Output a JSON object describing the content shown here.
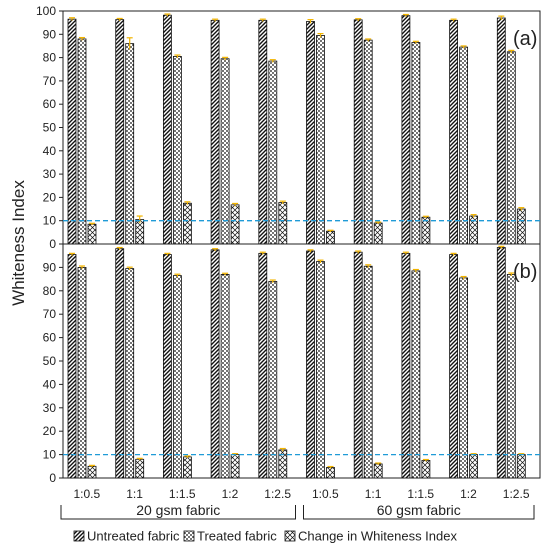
{
  "chart_data": {
    "type": "bar",
    "ylabel": "Whiteness Index",
    "ylim": [
      0,
      100
    ],
    "yticks": [
      0,
      10,
      20,
      30,
      40,
      50,
      60,
      70,
      80,
      90,
      100
    ],
    "categories": [
      "1:0.5",
      "1:1",
      "1:1.5",
      "1:2",
      "1:2.5",
      "1:0.5",
      "1:1",
      "1:1.5",
      "1:2",
      "1:2.5"
    ],
    "groups": [
      {
        "label": "20 gsm fabric",
        "from": 0,
        "to": 4
      },
      {
        "label": "60 gsm fabric",
        "from": 5,
        "to": 9
      }
    ],
    "reference_line": {
      "y": 10,
      "color": "#1f9bd7",
      "style": "dashed"
    },
    "legend": [
      "Untreated fabric",
      "Treated fabric",
      "Change in Whiteness Index"
    ],
    "legend_placement": "bottom",
    "errorbar_color": "#f2b400",
    "panels": [
      {
        "label": "(a)",
        "series": [
          {
            "name": "Untreated fabric",
            "values": [
              96.5,
              96.3,
              98.2,
              96.0,
              96.0,
              95.5,
              96.2,
              98.0,
              96.0,
              97.0
            ],
            "errors": [
              0.6,
              0.5,
              0.5,
              0.5,
              0.5,
              0.8,
              0.5,
              0.5,
              0.5,
              0.8
            ]
          },
          {
            "name": "Treated fabric",
            "values": [
              88.0,
              86.0,
              80.5,
              79.5,
              78.5,
              89.5,
              87.5,
              86.5,
              84.5,
              82.5
            ],
            "errors": [
              0.6,
              2.5,
              0.6,
              0.6,
              0.6,
              0.8,
              0.5,
              0.5,
              0.5,
              0.6
            ]
          },
          {
            "name": "Change in Whiteness Index",
            "values": [
              8.5,
              10.5,
              17.5,
              16.8,
              17.8,
              5.5,
              9.0,
              11.5,
              12.0,
              15.0
            ],
            "errors": [
              0.4,
              1.5,
              0.6,
              0.6,
              0.6,
              0.4,
              0.4,
              0.4,
              0.6,
              0.6
            ]
          }
        ]
      },
      {
        "label": "(b)",
        "series": [
          {
            "name": "Untreated fabric",
            "values": [
              95.5,
              98.0,
              95.5,
              97.5,
              96.0,
              97.0,
              96.5,
              96.0,
              95.5,
              98.5
            ],
            "errors": [
              0.5,
              0.5,
              0.5,
              0.5,
              0.5,
              0.5,
              0.5,
              0.5,
              0.5,
              0.5
            ]
          },
          {
            "name": "Treated fabric",
            "values": [
              90.0,
              89.5,
              86.5,
              87.0,
              84.0,
              92.5,
              90.5,
              88.5,
              85.5,
              87.0
            ],
            "errors": [
              0.6,
              0.6,
              0.6,
              0.5,
              0.6,
              0.6,
              0.6,
              0.6,
              0.6,
              0.6
            ]
          },
          {
            "name": "Change in Whiteness Index",
            "values": [
              5.0,
              8.0,
              9.0,
              10.0,
              12.0,
              4.5,
              6.0,
              7.5,
              10.0,
              10.0
            ],
            "errors": [
              0.4,
              0.4,
              0.4,
              0.4,
              0.6,
              0.4,
              0.4,
              0.4,
              0.4,
              0.4
            ]
          }
        ]
      }
    ]
  }
}
